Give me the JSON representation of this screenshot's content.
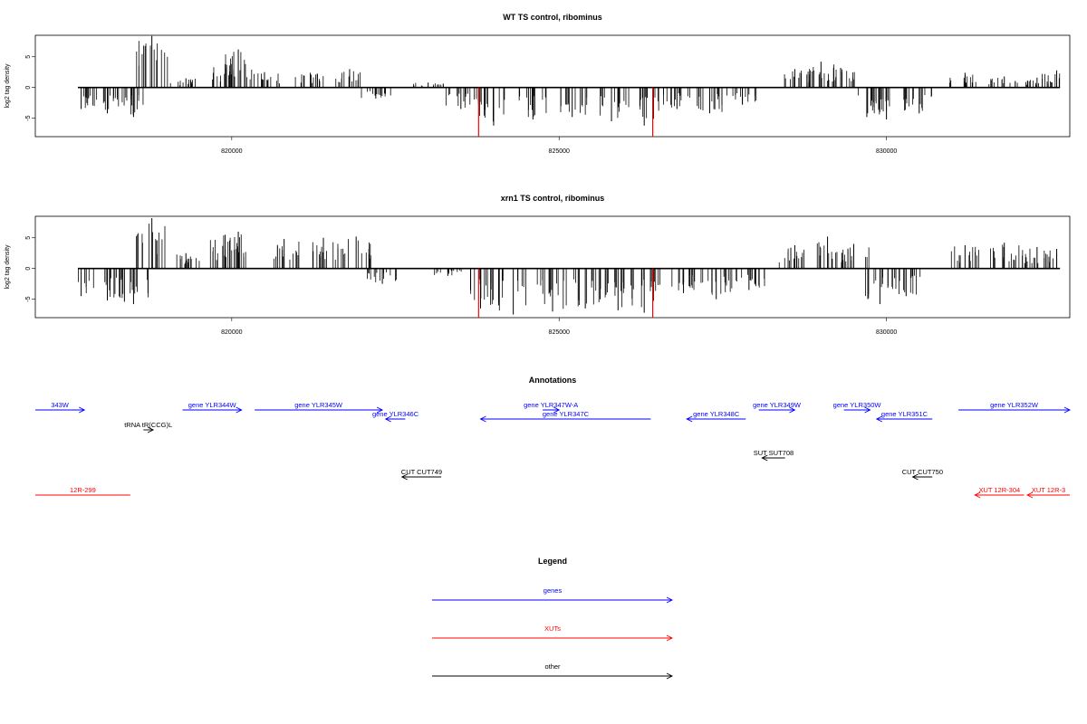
{
  "chart_data": [
    {
      "type": "bar",
      "title": "WT TS control, ribominus",
      "ylabel": "log2 tag density",
      "xlim": [
        817000,
        832800
      ],
      "ylim": [
        -8,
        8.5
      ],
      "x_ticks": [
        820000,
        825000,
        830000
      ],
      "x_tick_labels": [
        "820000",
        "825000",
        "830000"
      ],
      "y_ticks": [
        -5,
        0,
        5
      ],
      "y_tick_labels": [
        "-5",
        "0",
        "5"
      ],
      "data_extent": [
        817650,
        832650
      ],
      "series": [
        {
          "color": "#000000",
          "x": [
            817700,
            818100,
            818500,
            818780,
            819300,
            819900,
            820100,
            820500,
            821200,
            821800,
            822200,
            823000,
            823500,
            824000,
            824600,
            825200,
            825800,
            826300,
            826800,
            827300,
            827800,
            828600,
            829000,
            829300,
            829700,
            830000,
            830500,
            831200,
            831800,
            832300,
            832600
          ],
          "y": [
            -3.5,
            -4.2,
            -4.8,
            8.4,
            1.5,
            3.8,
            6.2,
            2.5,
            2.4,
            3.0,
            -1.8,
            0.8,
            -3.5,
            -6.2,
            -5.2,
            -4.8,
            -5.5,
            -6.2,
            -3.5,
            -4.2,
            -2.8,
            3.0,
            4.2,
            3.2,
            -4.8,
            -5.2,
            -4.2,
            2.4,
            1.8,
            1.6,
            2.8
          ]
        },
        {
          "color": "#ff0000",
          "x": [
            823770,
            826430
          ],
          "y": [
            -8.0,
            -8.0
          ]
        }
      ]
    },
    {
      "type": "bar",
      "title": "xrn1 TS control, ribominus",
      "ylabel": "log2 tag density",
      "xlim": [
        817000,
        832800
      ],
      "ylim": [
        -8,
        8.5
      ],
      "x_ticks": [
        820000,
        825000,
        830000
      ],
      "x_tick_labels": [
        "820000",
        "825000",
        "830000"
      ],
      "y_ticks": [
        -5,
        0,
        5
      ],
      "y_tick_labels": [
        "-5",
        "0",
        "5"
      ],
      "data_extent": [
        817650,
        832650
      ],
      "series": [
        {
          "color": "#000000",
          "x": [
            817700,
            818100,
            818500,
            818780,
            819300,
            819900,
            820100,
            820800,
            821400,
            821900,
            822300,
            823300,
            823800,
            824300,
            824900,
            825400,
            825900,
            826300,
            826900,
            827400,
            827900,
            828600,
            829100,
            829500,
            829900,
            830300,
            831200,
            831800,
            832300,
            832600
          ],
          "y": [
            -4.5,
            -5.2,
            -5.8,
            8.2,
            2.5,
            5.5,
            6.0,
            4.8,
            5.0,
            5.2,
            -2.5,
            -1.2,
            -6.5,
            -7.5,
            -7.0,
            -6.5,
            -6.8,
            -7.2,
            -4.0,
            -5.0,
            -3.5,
            3.8,
            5.2,
            4.0,
            -5.8,
            -4.5,
            3.8,
            4.2,
            3.5,
            3.2
          ]
        },
        {
          "color": "#ff0000",
          "x": [
            823770,
            826430
          ],
          "y": [
            -8.0,
            -8.0
          ]
        }
      ]
    }
  ],
  "annotations": {
    "title": "Annotations",
    "features": [
      {
        "label": "343W",
        "start": 817000,
        "end": 817750,
        "strand": "+",
        "color": "#0000ff",
        "row": 0
      },
      {
        "label": "gene YLR344W",
        "start": 819250,
        "end": 820150,
        "strand": "+",
        "color": "#0000ff",
        "row": 0
      },
      {
        "label": "gene YLR345W",
        "start": 820350,
        "end": 822300,
        "strand": "+",
        "color": "#0000ff",
        "row": 0
      },
      {
        "label": "gene YLR346C",
        "start": 822350,
        "end": 822650,
        "strand": "-",
        "color": "#0000ff",
        "row": 1
      },
      {
        "label": "tRNA tR(CCG)L",
        "start": 818650,
        "end": 818800,
        "strand": "+",
        "color": "#000000",
        "row": 2
      },
      {
        "label": "gene YLR347W-A",
        "start": 824750,
        "end": 825000,
        "strand": "+",
        "color": "#0000ff",
        "row": 0
      },
      {
        "label": "gene YLR347C",
        "start": 823800,
        "end": 826400,
        "strand": "-",
        "color": "#0000ff",
        "row": 1
      },
      {
        "label": "gene YLR349W",
        "start": 828050,
        "end": 828600,
        "strand": "+",
        "color": "#0000ff",
        "row": 0
      },
      {
        "label": "gene YLR348C",
        "start": 826950,
        "end": 827850,
        "strand": "-",
        "color": "#0000ff",
        "row": 1
      },
      {
        "label": "gene YLR350W",
        "start": 829350,
        "end": 829750,
        "strand": "+",
        "color": "#0000ff",
        "row": 0
      },
      {
        "label": "gene YLR351C",
        "start": 829850,
        "end": 830700,
        "strand": "-",
        "color": "#0000ff",
        "row": 1
      },
      {
        "label": "gene YLR352W",
        "start": 831100,
        "end": 832800,
        "strand": "+",
        "color": "#0000ff",
        "row": 0
      },
      {
        "label": "SUT SUT708",
        "start": 828100,
        "end": 828450,
        "strand": "-",
        "color": "#000000",
        "row": 3
      },
      {
        "label": "CUT CUT749",
        "start": 822600,
        "end": 823200,
        "strand": "-",
        "color": "#000000",
        "row": 4
      },
      {
        "label": "CUT CUT750",
        "start": 830400,
        "end": 830700,
        "strand": "-",
        "color": "#000000",
        "row": 4
      },
      {
        "label": "12R-299",
        "start": 817000,
        "end": 818450,
        "strand": "none",
        "color": "#ff0000",
        "row": 5
      },
      {
        "label": "XUT 12R-304",
        "start": 831350,
        "end": 832100,
        "strand": "-",
        "color": "#ff0000",
        "row": 5
      },
      {
        "label": "XUT 12R-3",
        "start": 832150,
        "end": 832800,
        "strand": "-",
        "color": "#ff0000",
        "row": 5
      }
    ]
  },
  "legend": {
    "title": "Legend",
    "items": [
      {
        "label": "genes",
        "color": "#0000ff"
      },
      {
        "label": "XUTs",
        "color": "#ff0000"
      },
      {
        "label": "other",
        "color": "#000000"
      }
    ]
  }
}
